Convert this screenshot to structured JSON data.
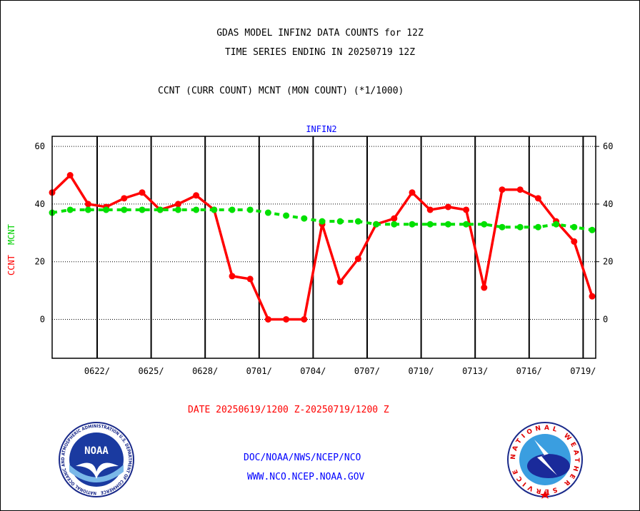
{
  "header": {
    "title1": "GDAS MODEL INFIN2 DATA COUNTS for 12Z",
    "title2": "TIME SERIES ENDING IN 20250719 12Z",
    "subtitle": "CCNT (CURR COUNT) MCNT (MON COUNT) (*1/1000)"
  },
  "footer": {
    "date_range": "DATE 20250619/1200 Z-20250719/1200 Z",
    "link1": "DOC/NOAA/NWS/NCEP/NCO",
    "link2": "WWW.NCO.NCEP.NOAA.GOV",
    "noaa_logo_text": "NOAA",
    "noaa_ring_text": "NATIONAL OCEANIC AND ATMOSPHERIC ADMINISTRATION U.S. DEPARTMENT OF COMMERCE",
    "nws_ring_text": "NATIONAL WEATHER SERVICE"
  },
  "chart_data": {
    "type": "line",
    "title": "INFIN2",
    "ylabel_left": "CCNT",
    "ylabel_right": "MCNT",
    "ylim": [
      -13.5,
      63.5
    ],
    "yticks": [
      0,
      20,
      40,
      60
    ],
    "grid": true,
    "x_start": "20250619/12Z",
    "x_step_days": 1,
    "xtick_labels": [
      "0622/",
      "0625/",
      "0628/",
      "0701/",
      "0704/",
      "0707/",
      "0710/",
      "0713/",
      "0716/",
      "0719/"
    ],
    "series": [
      {
        "name": "CCNT",
        "color": "#ff0000",
        "style": "solid",
        "values": [
          44,
          50,
          40,
          39,
          42,
          44,
          38,
          40,
          43,
          38,
          15,
          14,
          0,
          0,
          0,
          33,
          13,
          21,
          33,
          35,
          44,
          38,
          39,
          38,
          11,
          45,
          45,
          42,
          34,
          27,
          8
        ]
      },
      {
        "name": "MCNT",
        "color": "#00e000",
        "style": "dashed",
        "values": [
          37,
          38,
          38,
          38,
          38,
          38,
          38,
          38,
          38,
          38,
          38,
          38,
          37,
          36,
          35,
          34,
          34,
          34,
          33,
          33,
          33,
          33,
          33,
          33,
          33,
          32,
          32,
          32,
          33,
          32,
          31
        ]
      }
    ]
  }
}
